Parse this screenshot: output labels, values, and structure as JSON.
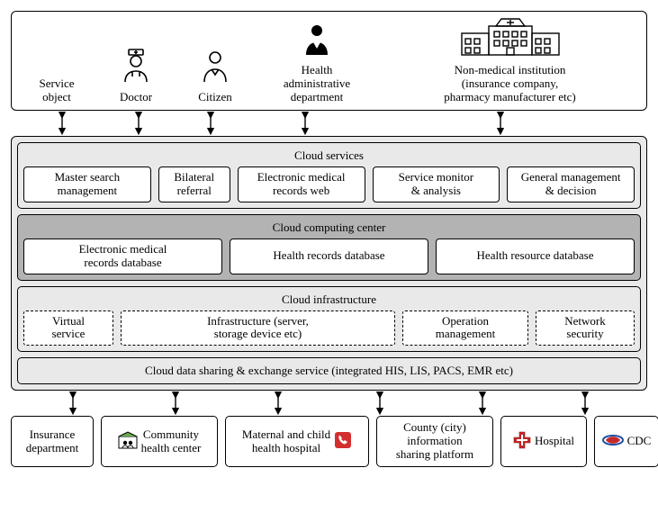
{
  "colors": {
    "stroke": "#000000",
    "bg_light": "#e9e9e9",
    "bg_dark": "#b3b3b3",
    "white": "#ffffff",
    "hospital_red": "#c62828",
    "cdc_red": "#c62828",
    "cdc_blue": "#1e4fa3",
    "phone_red": "#d32f2f",
    "community_green": "#6aa84f"
  },
  "actors": {
    "service_object": "Service\nobject",
    "doctor": "Doctor",
    "citizen": "Citizen",
    "health_admin": "Health\nadministrative\ndepartment",
    "non_medical": "Non-medical institution\n(insurance company,\npharmacy manufacturer etc)"
  },
  "layers": {
    "services": {
      "title": "Cloud services",
      "items": [
        "Master search\nmanagement",
        "Bilateral\nreferral",
        "Electronic medical\nrecords web",
        "Service monitor\n& analysis",
        "General management\n& decision"
      ]
    },
    "computing": {
      "title": "Cloud computing center",
      "items": [
        "Electronic medical\nrecords database",
        "Health records database",
        "Health resource database"
      ]
    },
    "infrastructure": {
      "title": "Cloud infrastructure",
      "items": [
        "Virtual\nservice",
        "Infrastructure (server,\nstorage device etc)",
        "Operation\nmanagement",
        "Network\nsecurity"
      ]
    },
    "sharing": "Cloud data sharing & exchange service (integrated HIS, LIS, PACS, EMR etc)"
  },
  "consumers": {
    "insurance": "Insurance\ndepartment",
    "community": "Community\nhealth center",
    "maternal": "Maternal and child\nhealth hospital",
    "county": "County (city)\ninformation\nsharing platform",
    "hospital": "Hospital",
    "cdc": "CDC"
  }
}
